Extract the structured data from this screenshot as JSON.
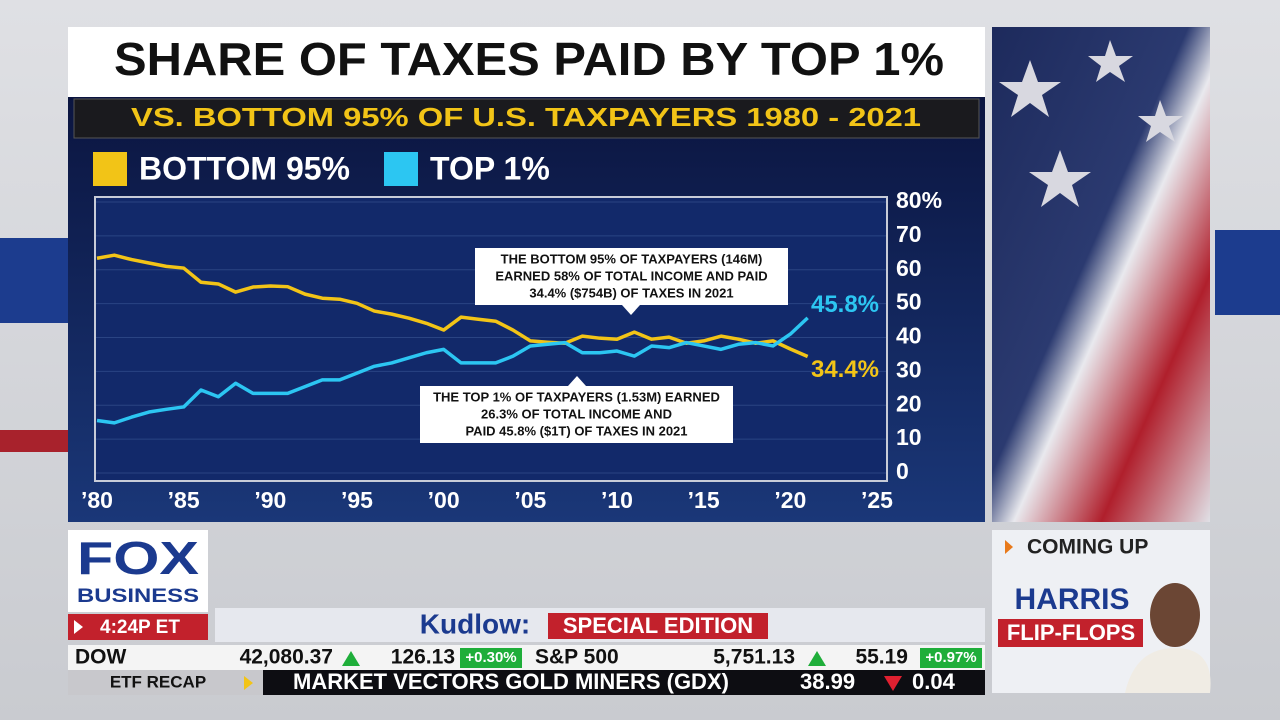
{
  "chart_data": {
    "type": "line",
    "title": "SHARE OF TAXES PAID BY TOP 1%",
    "subtitle": "VS. BOTTOM 95% OF U.S. TAXPAYERS 1980 - 2021",
    "x": [
      1980,
      1981,
      1982,
      1983,
      1984,
      1985,
      1986,
      1987,
      1988,
      1989,
      1990,
      1991,
      1992,
      1993,
      1994,
      1995,
      1996,
      1997,
      1998,
      1999,
      2000,
      2001,
      2002,
      2003,
      2004,
      2005,
      2006,
      2007,
      2008,
      2009,
      2010,
      2011,
      2012,
      2013,
      2014,
      2015,
      2016,
      2017,
      2018,
      2019,
      2020,
      2021
    ],
    "series": [
      {
        "name": "BOTTOM 95%",
        "color": "#f2c417",
        "values": [
          63.4,
          64.3,
          63,
          62,
          61,
          60.5,
          56.3,
          55.8,
          53.4,
          54.9,
          55.2,
          55,
          52.8,
          51.6,
          51.3,
          50.1,
          47.8,
          46.9,
          45.7,
          44.2,
          42.2,
          46,
          45.4,
          44.8,
          42.2,
          39,
          38.6,
          38.3,
          40.4,
          39.8,
          39.5,
          41.6,
          39.5,
          40.1,
          38.3,
          39,
          40.4,
          39.5,
          38.3,
          39,
          36.6,
          34.4
        ],
        "value_labels": [
          null,
          null,
          null,
          null,
          null,
          null,
          null,
          null,
          null,
          null,
          null,
          null,
          null,
          null,
          null,
          null,
          null,
          null,
          null,
          null,
          null,
          null,
          null,
          null,
          null,
          null,
          null,
          null,
          null,
          null,
          null,
          null,
          null,
          null,
          null,
          null,
          null,
          null,
          null,
          null,
          null,
          "34.4%"
        ]
      },
      {
        "name": "TOP 1%",
        "color": "#2cc6f2",
        "values": [
          15.5,
          14.8,
          16.5,
          18,
          18.8,
          19.5,
          24.5,
          22.5,
          26.5,
          23.5,
          23.5,
          23.5,
          25.5,
          27.5,
          27.5,
          29.5,
          31.5,
          32.5,
          34,
          35.5,
          36.5,
          32.5,
          32.5,
          32.5,
          34.5,
          37.5,
          38,
          38.5,
          35.5,
          35.5,
          36,
          34.5,
          37.5,
          37,
          38.5,
          37.5,
          36.5,
          38,
          38.5,
          37.5,
          41,
          45.8
        ],
        "value_labels": [
          null,
          null,
          null,
          null,
          null,
          null,
          null,
          null,
          null,
          null,
          null,
          null,
          null,
          null,
          null,
          null,
          null,
          null,
          null,
          null,
          null,
          null,
          null,
          null,
          null,
          null,
          null,
          null,
          null,
          null,
          null,
          null,
          null,
          null,
          null,
          null,
          null,
          null,
          null,
          null,
          null,
          "45.8%"
        ]
      }
    ],
    "xlim": [
      1980,
      2025
    ],
    "xticks": [
      {
        "value": 1980,
        "label": "’80"
      },
      {
        "value": 1985,
        "label": "’85"
      },
      {
        "value": 1990,
        "label": "’90"
      },
      {
        "value": 1995,
        "label": "’95"
      },
      {
        "value": 2000,
        "label": "’00"
      },
      {
        "value": 2005,
        "label": "’05"
      },
      {
        "value": 2010,
        "label": "’10"
      },
      {
        "value": 2015,
        "label": "’15"
      },
      {
        "value": 2020,
        "label": "’20"
      },
      {
        "value": 2025,
        "label": "’25"
      }
    ],
    "ylim": [
      0,
      80
    ],
    "yticks": [
      0,
      10,
      20,
      30,
      40,
      50,
      60,
      70,
      {
        "value": 80,
        "label": "80%"
      }
    ],
    "grid": true,
    "annotations": [
      {
        "lines": [
          "THE BOTTOM 95% OF TAXPAYERS (146M)",
          "EARNED 58% OF TOTAL INCOME AND PAID",
          "34.4% ($754B) OF TAXES IN 2021"
        ]
      },
      {
        "lines": [
          "THE TOP 1% OF TAXPAYERS (1.53M) EARNED",
          "26.3% OF TOTAL INCOME AND",
          "PAID 45.8% ($1T) OF TAXES IN 2021"
        ]
      }
    ]
  },
  "broadcast": {
    "logo_top": "FOX",
    "logo_bottom": "BUSINESS",
    "time": "4:24P ET",
    "show": "Kudlow:",
    "show_tag": "SPECIAL EDITION",
    "ticker": [
      "DOW",
      "42,080.37",
      "126.13",
      "+0.30%",
      "S&P 500",
      "5,751.13",
      "55.19",
      "+0.97%"
    ],
    "crawl_label": "ETF RECAP",
    "crawl": "MARKET VECTORS GOLD MINERS (GDX)",
    "crawl_price": "38.99",
    "crawl_change": "0.04",
    "coming_up": "COMING UP",
    "promo": [
      "HARRIS",
      "FLIP-FLOPS"
    ]
  }
}
